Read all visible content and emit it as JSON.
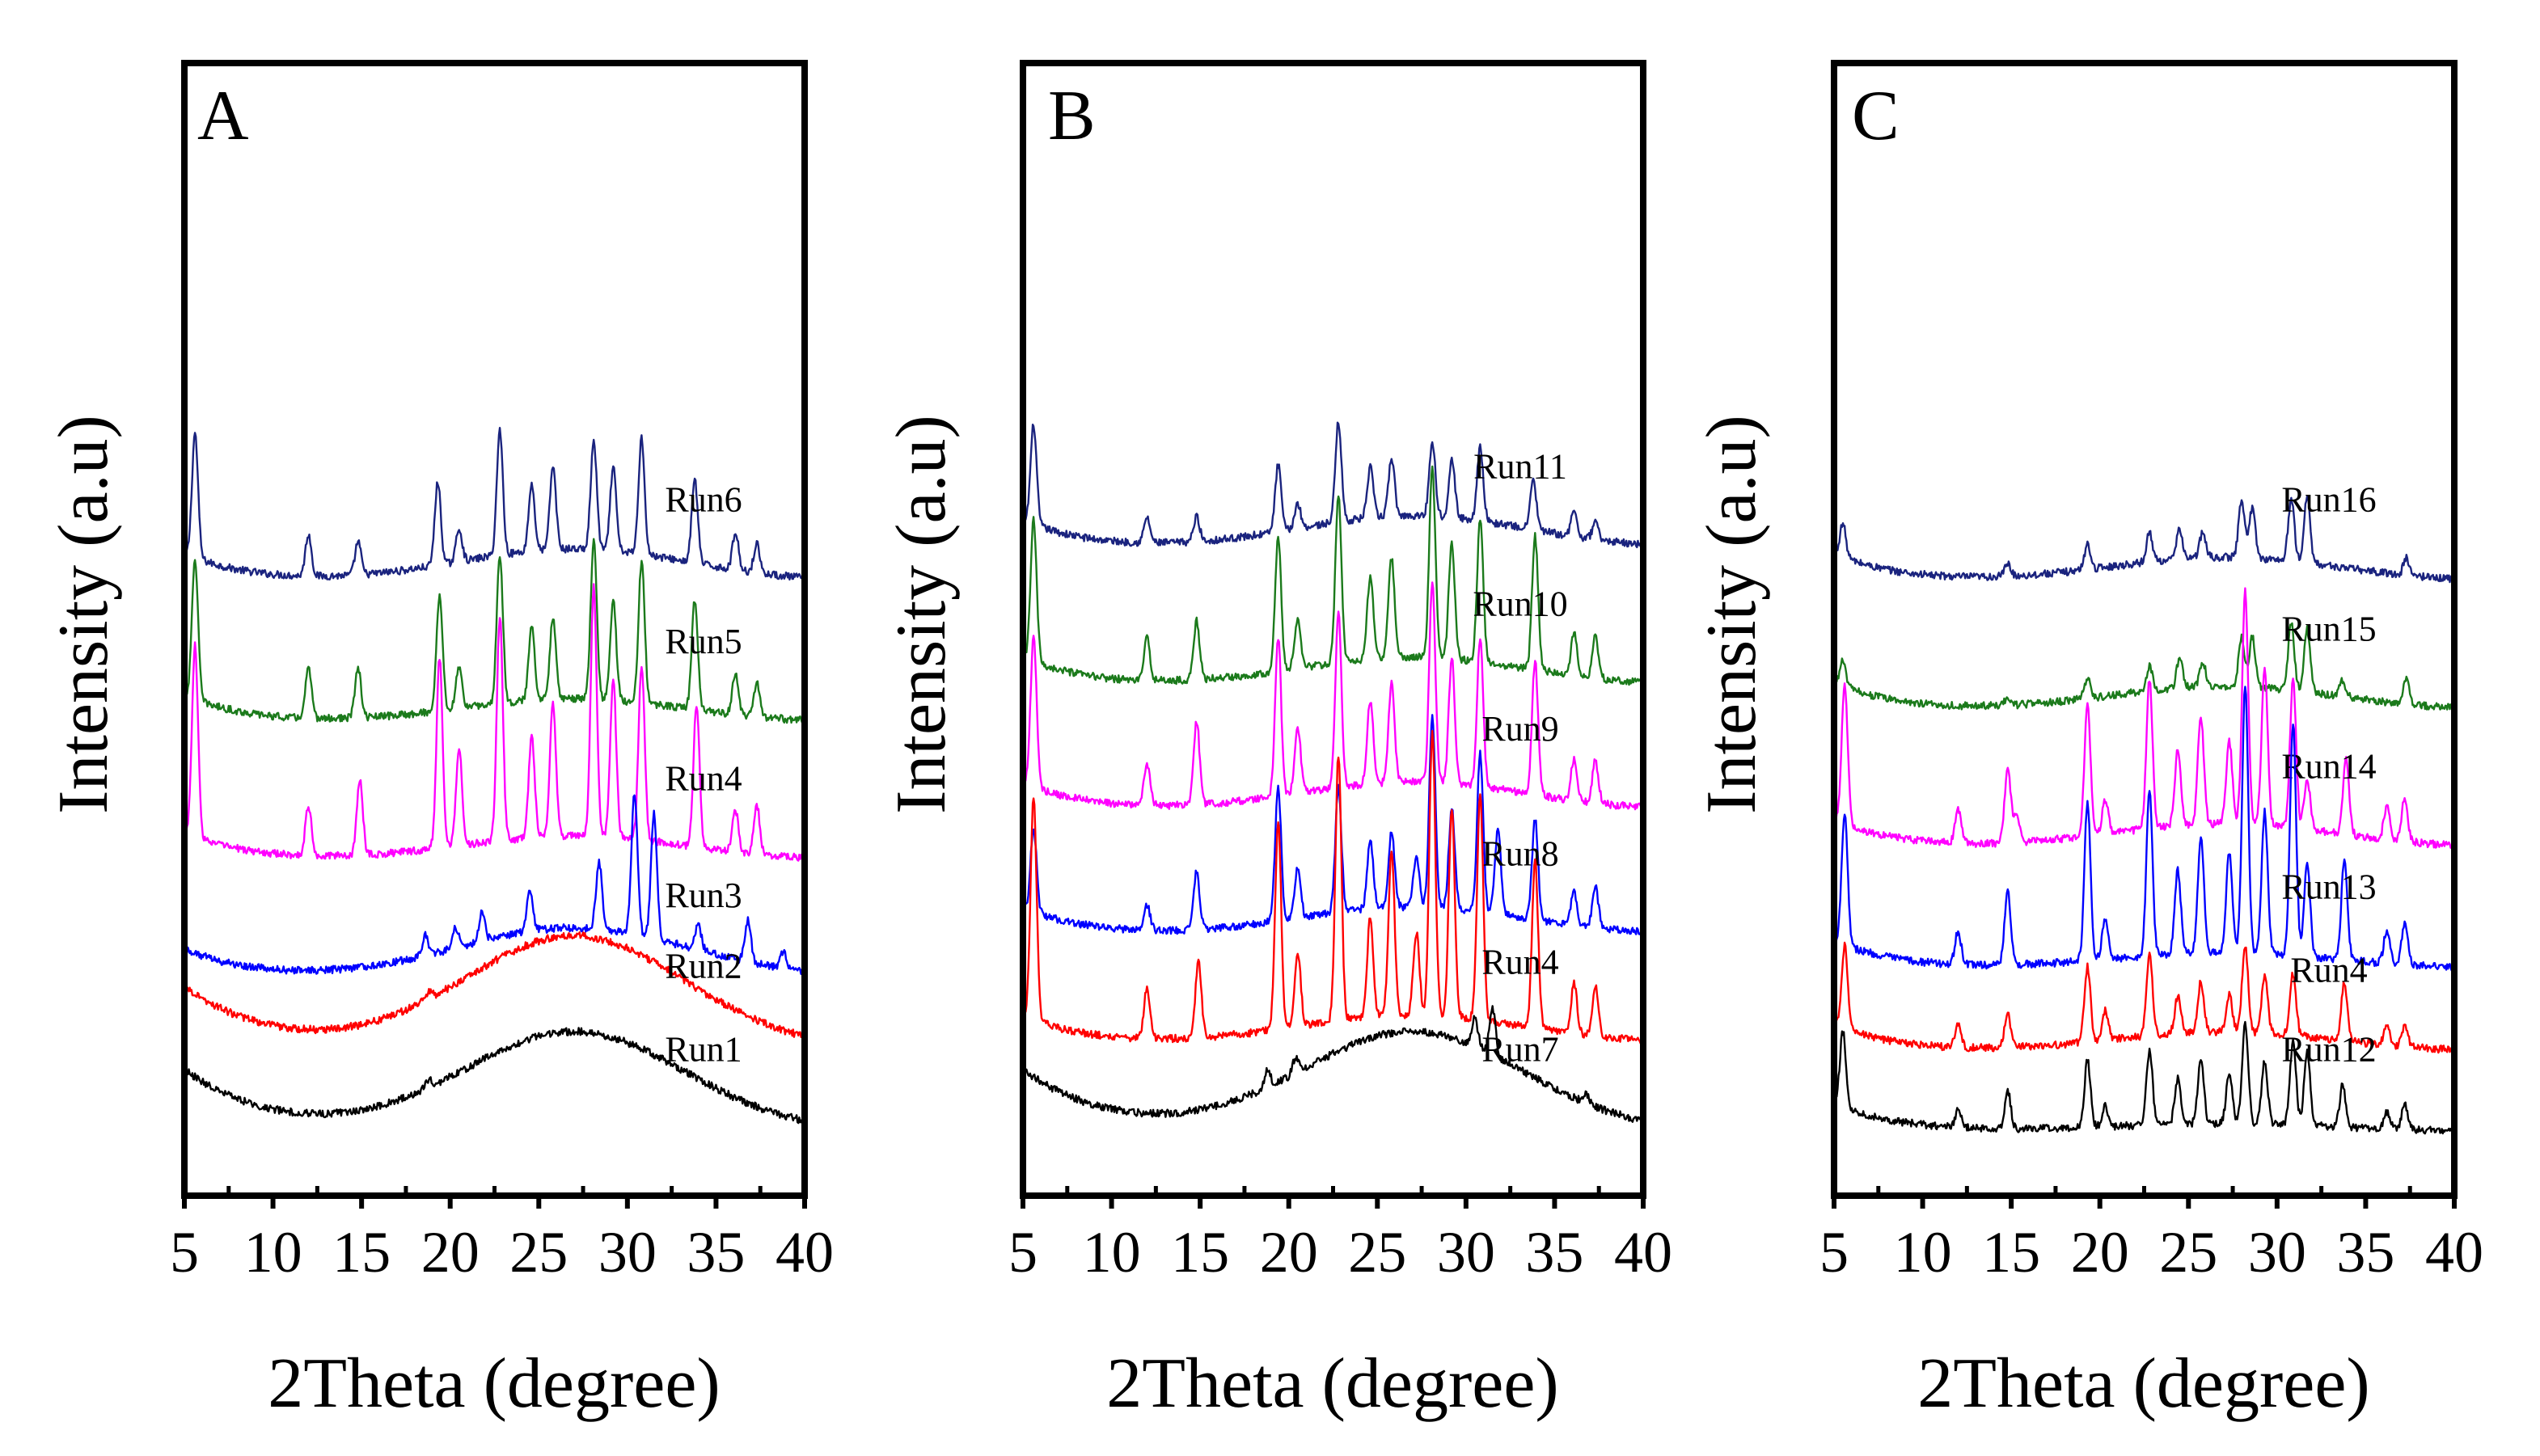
{
  "chart_data": [
    {
      "type": "line",
      "panel_label": "A",
      "xlabel": "2Theta (degree)",
      "ylabel": "Intensity (a.u)",
      "xlim": [
        5,
        40
      ],
      "xticks": [
        "5",
        "10",
        "15",
        "20",
        "25",
        "30",
        "35",
        "40"
      ],
      "series": [
        {
          "name": "Run6",
          "color": "#1a237e",
          "kind": "crystalline",
          "offset": 6.6,
          "hump": 0.4,
          "peaks": [
            [
              5.6,
              1.5
            ],
            [
              12,
              0.5
            ],
            [
              14.8,
              0.4
            ],
            [
              19.3,
              1.0
            ],
            [
              20.5,
              0.4
            ],
            [
              22.8,
              1.5
            ],
            [
              24.6,
              0.8
            ],
            [
              25.8,
              1.0
            ],
            [
              28.1,
              1.3
            ],
            [
              29.2,
              1.0
            ],
            [
              30.8,
              1.4
            ],
            [
              33.8,
              1.0
            ],
            [
              36.1,
              0.45
            ],
            [
              37.3,
              0.35
            ]
          ]
        },
        {
          "name": "Run5",
          "color": "#1b7a1b",
          "kind": "crystalline",
          "offset": 4.9,
          "hump": 0.3,
          "peaks": [
            [
              5.6,
              1.7
            ],
            [
              12,
              0.6
            ],
            [
              14.8,
              0.6
            ],
            [
              19.4,
              1.4
            ],
            [
              20.5,
              0.5
            ],
            [
              22.8,
              1.8
            ],
            [
              24.6,
              0.9
            ],
            [
              25.8,
              1.0
            ],
            [
              28.1,
              1.9
            ],
            [
              29.2,
              1.2
            ],
            [
              30.8,
              1.7
            ],
            [
              33.8,
              1.3
            ],
            [
              36.1,
              0.5
            ],
            [
              37.3,
              0.4
            ]
          ]
        },
        {
          "name": "Run4",
          "color": "#ff00ff",
          "kind": "crystalline",
          "offset": 3.25,
          "hump": 0.3,
          "peaks": [
            [
              5.6,
              2.3
            ],
            [
              12,
              0.6
            ],
            [
              14.9,
              0.9
            ],
            [
              19.4,
              2.3
            ],
            [
              20.5,
              1.2
            ],
            [
              22.8,
              2.7
            ],
            [
              24.6,
              1.2
            ],
            [
              25.8,
              1.6
            ],
            [
              28.1,
              3.0
            ],
            [
              29.2,
              1.9
            ],
            [
              30.8,
              2.1
            ],
            [
              33.9,
              1.7
            ],
            [
              36.1,
              0.5
            ],
            [
              37.3,
              0.6
            ]
          ]
        },
        {
          "name": "Run3",
          "color": "#0000ff",
          "kind": "crystalline",
          "offset": 1.85,
          "hump": 0.6,
          "peaks": [
            [
              18.6,
              0.25
            ],
            [
              20.3,
              0.25
            ],
            [
              21.8,
              0.35
            ],
            [
              24.5,
              0.5
            ],
            [
              28.4,
              0.8
            ],
            [
              30.4,
              1.7
            ],
            [
              31.5,
              1.5
            ],
            [
              34.0,
              0.3
            ],
            [
              36.8,
              0.5
            ],
            [
              38.8,
              0.2
            ]
          ]
        },
        {
          "name": "Run2",
          "color": "#ff0000",
          "kind": "amorphous",
          "offset": 1.0,
          "hump": 1.35,
          "peaks": [
            [
              18.8,
              0.1
            ]
          ]
        },
        {
          "name": "Run1",
          "color": "#000000",
          "kind": "amorphous",
          "offset": 0.0,
          "hump": 1.2,
          "peaks": [
            [
              18.8,
              0.1
            ]
          ]
        }
      ]
    },
    {
      "type": "line",
      "panel_label": "B",
      "xlabel": "2Theta (degree)",
      "ylabel": "Intensity (a.u)",
      "xlim": [
        5,
        40
      ],
      "xticks": [
        "5",
        "10",
        "15",
        "20",
        "25",
        "30",
        "35",
        "40"
      ],
      "series": [
        {
          "name": "Run11",
          "color": "#1a237e",
          "kind": "crystalline",
          "offset": 7.0,
          "hump": 0.4,
          "peaks": [
            [
              5.6,
              1.2
            ],
            [
              12,
              0.3
            ],
            [
              14.8,
              0.3
            ],
            [
              19.4,
              0.8
            ],
            [
              20.5,
              0.3
            ],
            [
              22.8,
              1.2
            ],
            [
              24.6,
              0.6
            ],
            [
              25.8,
              0.7
            ],
            [
              28.1,
              0.9
            ],
            [
              29.2,
              0.7
            ],
            [
              30.8,
              0.9
            ],
            [
              33.8,
              0.6
            ],
            [
              36.1,
              0.3
            ],
            [
              37.3,
              0.2
            ]
          ]
        },
        {
          "name": "Run10",
          "color": "#1b7a1b",
          "kind": "crystalline",
          "offset": 5.35,
          "hump": 0.35,
          "peaks": [
            [
              5.6,
              1.7
            ],
            [
              12,
              0.5
            ],
            [
              14.8,
              0.7
            ],
            [
              19.4,
              1.6
            ],
            [
              20.5,
              0.6
            ],
            [
              22.8,
              2.0
            ],
            [
              24.6,
              1.0
            ],
            [
              25.8,
              1.2
            ],
            [
              28.1,
              2.3
            ],
            [
              29.2,
              1.4
            ],
            [
              30.8,
              1.7
            ],
            [
              33.9,
              1.6
            ],
            [
              36.1,
              0.5
            ],
            [
              37.3,
              0.5
            ]
          ]
        },
        {
          "name": "Run9",
          "color": "#ff00ff",
          "kind": "crystalline",
          "offset": 3.85,
          "hump": 0.35,
          "peaks": [
            [
              5.6,
              1.8
            ],
            [
              12,
              0.5
            ],
            [
              14.8,
              1.0
            ],
            [
              19.4,
              1.9
            ],
            [
              20.5,
              0.8
            ],
            [
              22.8,
              2.1
            ],
            [
              24.6,
              1.0
            ],
            [
              25.8,
              1.2
            ],
            [
              28.1,
              2.4
            ],
            [
              29.2,
              1.5
            ],
            [
              30.8,
              1.8
            ],
            [
              33.9,
              1.6
            ],
            [
              36.1,
              0.5
            ],
            [
              37.3,
              0.5
            ]
          ]
        },
        {
          "name": "Run8",
          "color": "#0000ff",
          "kind": "crystalline",
          "offset": 2.35,
          "hump": 0.35,
          "peaks": [
            [
              5.6,
              1.0
            ],
            [
              12,
              0.3
            ],
            [
              14.8,
              0.7
            ],
            [
              19.4,
              1.6
            ],
            [
              20.5,
              0.6
            ],
            [
              22.8,
              1.5
            ],
            [
              24.6,
              0.8
            ],
            [
              25.8,
              0.9
            ],
            [
              27.2,
              0.6
            ],
            [
              28.1,
              2.3
            ],
            [
              29.2,
              1.2
            ],
            [
              30.8,
              1.9
            ],
            [
              31.8,
              1.0
            ],
            [
              33.9,
              1.2
            ],
            [
              36.1,
              0.4
            ],
            [
              37.3,
              0.5
            ]
          ]
        },
        {
          "name": "Run4",
          "color": "#ff0000",
          "kind": "crystalline",
          "offset": 1.05,
          "hump": 0.35,
          "peaks": [
            [
              5.6,
              2.7
            ],
            [
              12,
              0.6
            ],
            [
              14.9,
              0.9
            ],
            [
              19.4,
              2.5
            ],
            [
              20.5,
              0.9
            ],
            [
              22.8,
              3.2
            ],
            [
              24.6,
              1.2
            ],
            [
              25.8,
              2.0
            ],
            [
              27.2,
              1.0
            ],
            [
              28.1,
              3.4
            ],
            [
              29.2,
              2.5
            ],
            [
              30.8,
              2.7
            ],
            [
              33.9,
              2.0
            ],
            [
              36.1,
              0.6
            ],
            [
              37.3,
              0.6
            ]
          ]
        },
        {
          "name": "Run7",
          "color": "#000000",
          "kind": "amorphous",
          "offset": 0.0,
          "hump": 1.2,
          "peaks": [
            [
              18.8,
              0.2
            ],
            [
              20.4,
              0.2
            ],
            [
              30.5,
              0.35
            ],
            [
              31.5,
              0.55
            ],
            [
              36.8,
              0.1
            ]
          ]
        }
      ]
    },
    {
      "type": "line",
      "panel_label": "C",
      "xlabel": "2Theta (degree)",
      "ylabel": "Intensity (a.u)",
      "xlim": [
        5,
        40
      ],
      "xticks": [
        "5",
        "10",
        "15",
        "20",
        "25",
        "30",
        "35",
        "40"
      ],
      "series": [
        {
          "name": "Run16",
          "color": "#1a237e",
          "kind": "crystalline",
          "offset": 6.6,
          "hump": 0.3,
          "peaks": [
            [
              5.5,
              0.4
            ],
            [
              14.8,
              0.15
            ],
            [
              19.3,
              0.3
            ],
            [
              22.8,
              0.35
            ],
            [
              24.5,
              0.35
            ],
            [
              25.8,
              0.3
            ],
            [
              28.0,
              0.7
            ],
            [
              28.6,
              0.6
            ],
            [
              30.8,
              0.75
            ],
            [
              31.7,
              0.8
            ],
            [
              37.3,
              0.2
            ]
          ]
        },
        {
          "name": "Run15",
          "color": "#1b7a1b",
          "kind": "crystalline",
          "offset": 5.05,
          "hump": 0.3,
          "peaks": [
            [
              5.5,
              0.3
            ],
            [
              14.8,
              0.1
            ],
            [
              19.3,
              0.25
            ],
            [
              22.8,
              0.3
            ],
            [
              24.5,
              0.35
            ],
            [
              25.8,
              0.3
            ],
            [
              28.0,
              0.6
            ],
            [
              28.6,
              0.6
            ],
            [
              30.8,
              0.8
            ],
            [
              31.7,
              0.75
            ],
            [
              33.7,
              0.2
            ],
            [
              37.3,
              0.3
            ]
          ]
        },
        {
          "name": "Run14",
          "color": "#ff00ff",
          "kind": "crystalline",
          "offset": 3.4,
          "hump": 0.3,
          "peaks": [
            [
              5.6,
              1.7
            ],
            [
              12,
              0.4
            ],
            [
              14.8,
              0.9
            ],
            [
              15.3,
              0.3
            ],
            [
              19.3,
              1.6
            ],
            [
              20.3,
              0.4
            ],
            [
              22.8,
              1.8
            ],
            [
              24.4,
              0.9
            ],
            [
              25.7,
              1.3
            ],
            [
              27.3,
              1.0
            ],
            [
              28.2,
              2.8
            ],
            [
              29.3,
              1.9
            ],
            [
              30.9,
              1.8
            ],
            [
              31.7,
              0.6
            ],
            [
              33.9,
              0.9
            ],
            [
              36.2,
              0.4
            ],
            [
              37.2,
              0.5
            ]
          ]
        },
        {
          "name": "Run13",
          "color": "#0000ff",
          "kind": "crystalline",
          "offset": 1.95,
          "hump": 0.2,
          "peaks": [
            [
              5.6,
              1.6
            ],
            [
              12,
              0.4
            ],
            [
              14.8,
              0.9
            ],
            [
              19.3,
              1.9
            ],
            [
              20.3,
              0.5
            ],
            [
              22.8,
              2.0
            ],
            [
              24.4,
              1.0
            ],
            [
              25.7,
              1.4
            ],
            [
              27.3,
              1.2
            ],
            [
              28.2,
              3.2
            ],
            [
              29.3,
              1.7
            ],
            [
              30.9,
              2.8
            ],
            [
              31.7,
              1.1
            ],
            [
              33.8,
              1.2
            ],
            [
              36.2,
              0.4
            ],
            [
              37.2,
              0.5
            ]
          ]
        },
        {
          "name": "Run4",
          "color": "#ff0000",
          "kind": "crystalline",
          "offset": 0.95,
          "hump": 0.25,
          "peaks": [
            [
              5.6,
              1.0
            ],
            [
              12,
              0.3
            ],
            [
              14.8,
              0.4
            ],
            [
              19.3,
              0.9
            ],
            [
              20.3,
              0.35
            ],
            [
              22.8,
              1.0
            ],
            [
              24.4,
              0.45
            ],
            [
              25.7,
              0.6
            ],
            [
              27.3,
              0.45
            ],
            [
              28.2,
              1.05
            ],
            [
              29.3,
              0.7
            ],
            [
              30.9,
              0.75
            ],
            [
              33.8,
              0.7
            ],
            [
              36.2,
              0.25
            ],
            [
              37.2,
              0.25
            ]
          ]
        },
        {
          "name": "Run12",
          "color": "#000000",
          "kind": "crystalline",
          "offset": 0.0,
          "hump": 0.1,
          "peaks": [
            [
              5.5,
              0.9
            ],
            [
              12,
              0.2
            ],
            [
              14.8,
              0.45
            ],
            [
              19.3,
              0.8
            ],
            [
              20.3,
              0.25
            ],
            [
              22.8,
              0.9
            ],
            [
              24.4,
              0.55
            ],
            [
              25.7,
              0.75
            ],
            [
              27.3,
              0.6
            ],
            [
              28.2,
              1.2
            ],
            [
              29.3,
              0.75
            ],
            [
              30.9,
              1.0
            ],
            [
              31.7,
              0.9
            ],
            [
              33.7,
              0.5
            ],
            [
              36.2,
              0.2
            ],
            [
              37.2,
              0.3
            ]
          ]
        }
      ]
    }
  ]
}
